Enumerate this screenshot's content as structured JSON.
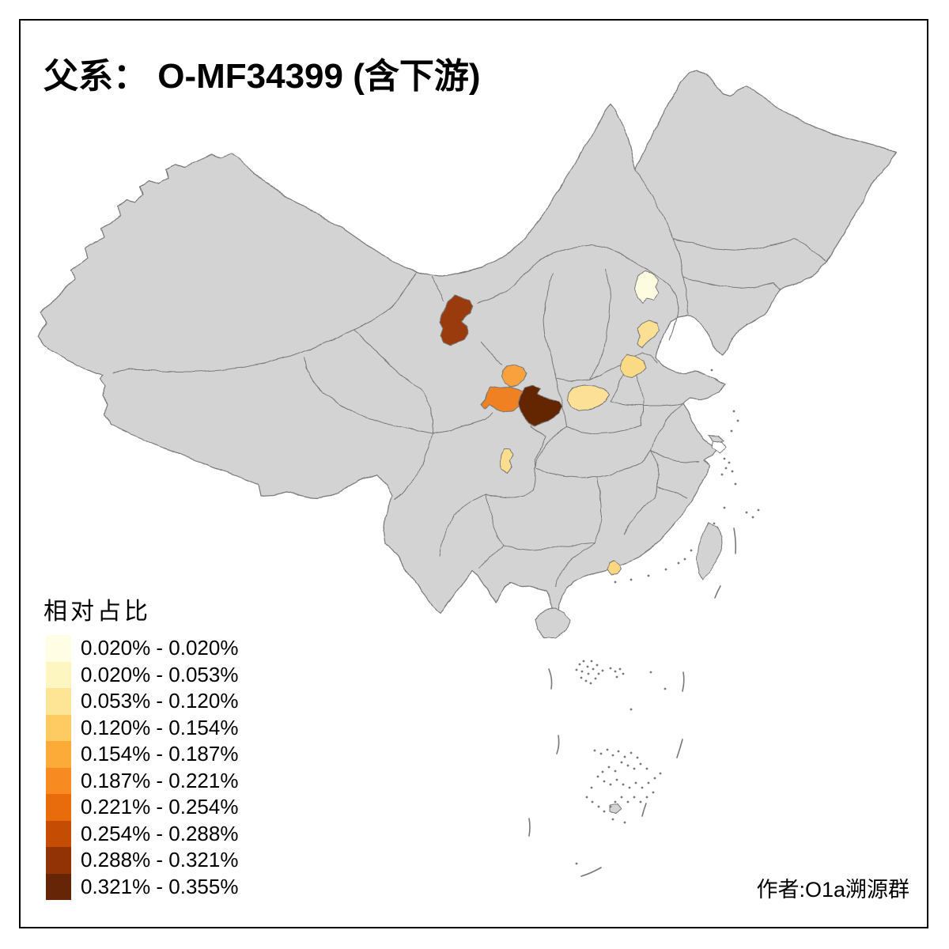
{
  "page": {
    "background": "#FFFFFF",
    "frame_color": "#000000"
  },
  "title": {
    "text": "父系： O-MF34399 (含下游)"
  },
  "author": {
    "text": "作者:O1a溯源群"
  },
  "legend": {
    "title": "相对占比",
    "items": [
      {
        "label": "0.020% - 0.020%",
        "color": "#FFFEE5"
      },
      {
        "label": "0.020% - 0.053%",
        "color": "#FEF6C1"
      },
      {
        "label": "0.053% - 0.120%",
        "color": "#FDE595"
      },
      {
        "label": "0.120% - 0.154%",
        "color": "#FDCB61"
      },
      {
        "label": "0.154% - 0.187%",
        "color": "#FDAB38"
      },
      {
        "label": "0.187% - 0.221%",
        "color": "#F78B22"
      },
      {
        "label": "0.221% - 0.254%",
        "color": "#E86C0C"
      },
      {
        "label": "0.254% - 0.288%",
        "color": "#C44D03"
      },
      {
        "label": "0.288% - 0.321%",
        "color": "#923305"
      },
      {
        "label": "0.321% - 0.355%",
        "color": "#662506"
      }
    ]
  },
  "map": {
    "land_fill": "#D3D3D3",
    "border_color": "#787878",
    "sea_fill": "#FFFFFF",
    "regions": [
      {
        "id": "beijing-area",
        "fill": "#FEFCE0",
        "value_range": "0.020% - 0.020%"
      },
      {
        "id": "hebei-cangzhou-area",
        "fill": "#FBE093",
        "value_range": "0.053% - 0.120%"
      },
      {
        "id": "shandong-west-area",
        "fill": "#FBDA86",
        "value_range": "0.053% - 0.120%"
      },
      {
        "id": "henan-nanyang-area",
        "fill": "#FCE095",
        "value_range": "0.053% - 0.120%"
      },
      {
        "id": "sichuan-north-area",
        "fill": "#FBDD8F",
        "value_range": "0.120% - 0.154%"
      },
      {
        "id": "guangdong-coast-area",
        "fill": "#FBD880",
        "value_range": "0.120% - 0.154%"
      },
      {
        "id": "gansu-east-area",
        "fill": "#F9A23C",
        "value_range": "0.154% - 0.187%"
      },
      {
        "id": "tianshui-baoji-area",
        "fill": "#EF8124",
        "value_range": "0.187% - 0.221%"
      },
      {
        "id": "ningxia-area",
        "fill": "#993B0B",
        "value_range": "0.288% - 0.321%"
      },
      {
        "id": "shaanxi-south-area",
        "fill": "#632706",
        "value_range": "0.321% - 0.355%"
      }
    ]
  },
  "chart_data": {
    "type": "choropleth-map",
    "title": "父系： O-MF34399 (含下游)",
    "legend_title": "相对占比",
    "classes": [
      "0.020% - 0.020%",
      "0.020% - 0.053%",
      "0.053% - 0.120%",
      "0.120% - 0.154%",
      "0.154% - 0.187%",
      "0.187% - 0.221%",
      "0.221% - 0.254%",
      "0.254% - 0.288%",
      "0.288% - 0.321%",
      "0.321% - 0.355%"
    ],
    "value_min": "0.020%",
    "value_max": "0.355%",
    "colored_region_count": 10,
    "attribution": "作者:O1a溯源群"
  }
}
